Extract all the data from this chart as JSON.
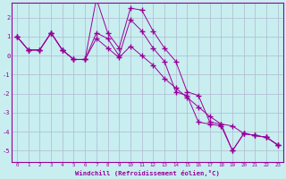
{
  "xlabel": "Windchill (Refroidissement éolien,°C)",
  "bg_color": "#c8eef0",
  "line_color": "#990099",
  "grid_color": "#b0b8d0",
  "series": [
    [
      1.0,
      0.3,
      0.3,
      1.2,
      0.3,
      -0.2,
      -0.2,
      3.0,
      1.2,
      0.4,
      2.5,
      2.4,
      1.3,
      0.4,
      -0.3,
      -1.9,
      -2.1,
      -3.5,
      -3.6,
      -5.0,
      -4.1,
      -4.2,
      -4.3,
      -4.7
    ],
    [
      1.0,
      0.3,
      0.3,
      1.2,
      0.3,
      -0.2,
      -0.2,
      1.2,
      0.9,
      0.0,
      1.9,
      1.3,
      0.4,
      -0.3,
      -1.9,
      -2.1,
      -3.5,
      -3.6,
      -3.7,
      -5.0,
      -4.1,
      -4.2,
      -4.3,
      -4.7
    ],
    [
      1.0,
      0.3,
      0.3,
      1.2,
      0.3,
      -0.2,
      -0.2,
      0.9,
      0.4,
      -0.1,
      0.5,
      0.0,
      -0.5,
      -1.2,
      -1.7,
      -2.2,
      -2.7,
      -3.2,
      -3.6,
      -3.7,
      -4.1,
      -4.2,
      -4.3,
      -4.7
    ]
  ],
  "xlim": [
    -0.5,
    23.5
  ],
  "ylim": [
    -5.6,
    2.8
  ],
  "yticks": [
    -5,
    -4,
    -3,
    -2,
    -1,
    0,
    1,
    2
  ],
  "xticks": [
    0,
    1,
    2,
    3,
    4,
    5,
    6,
    7,
    8,
    9,
    10,
    11,
    12,
    13,
    14,
    15,
    16,
    17,
    18,
    19,
    20,
    21,
    22,
    23
  ]
}
